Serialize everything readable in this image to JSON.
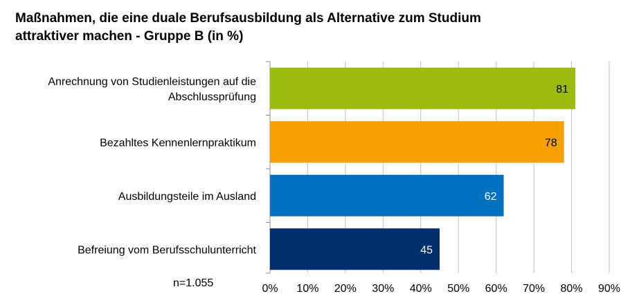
{
  "chart_data": {
    "type": "bar",
    "orientation": "horizontal",
    "title": "Maßnahmen, die eine duale Berufsausbildung als Alternative zum Studium attraktiver machen - Gruppe B (in %)",
    "title_lines": [
      "Maßnahmen, die eine duale Berufsausbildung als Alternative zum Studium",
      "attraktiver machen - Gruppe B (in %)"
    ],
    "categories": [
      [
        "Anrechnung von Studienleistungen auf die",
        "Abschlussprüfung"
      ],
      [
        "Bezahltes Kennenlernpraktikum"
      ],
      [
        "Ausbildungsteile im Ausland"
      ],
      [
        "Befreiung vom Berufsschulunterricht"
      ]
    ],
    "values": [
      81,
      78,
      62,
      45
    ],
    "bar_colors": [
      "#9bbb0f",
      "#f5a000",
      "#0070c0",
      "#002f6c"
    ],
    "label_colors": [
      "#000000",
      "#000000",
      "#ffffff",
      "#ffffff"
    ],
    "xlim": [
      0,
      90
    ],
    "xticks": [
      0,
      10,
      20,
      30,
      40,
      50,
      60,
      70,
      80,
      90
    ],
    "tick_suffix": "%",
    "grid": true,
    "note": "n=1.055"
  }
}
